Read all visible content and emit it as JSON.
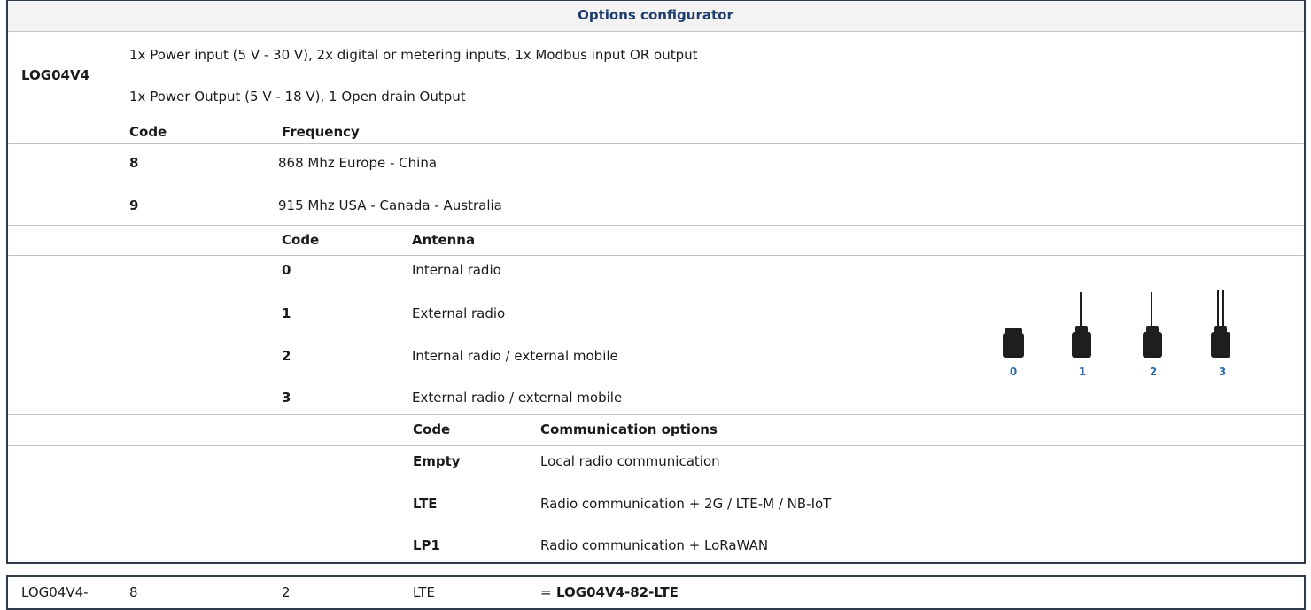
{
  "title": "Options configurator",
  "model": {
    "code": "LOG04V4",
    "lines": [
      "1x Power input (5 V - 30 V), 2x digital or metering inputs, 1x Modbus input OR output",
      "1x Power Output (5 V - 18 V), 1 Open drain Output"
    ]
  },
  "frequency": {
    "headers": [
      "Code",
      "Frequency"
    ],
    "rows": [
      [
        "8",
        "868 Mhz Europe - China"
      ],
      [
        "9",
        "915 Mhz USA - Canada - Australia"
      ]
    ]
  },
  "antenna": {
    "headers": [
      "Code",
      "Antenna"
    ],
    "rows": [
      [
        "0",
        "Internal radio"
      ],
      [
        "1",
        "External radio"
      ],
      [
        "2",
        "Internal radio / external mobile"
      ],
      [
        "3",
        "External radio / external mobile"
      ]
    ]
  },
  "antenna_image_labels": [
    "0",
    "1",
    "2",
    "3"
  ],
  "communication": {
    "headers": [
      "Code",
      "Communication options"
    ],
    "rows": [
      [
        "Empty",
        "Local radio communication"
      ],
      [
        "LTE",
        "Radio communication + 2G / LTE-M / NB-IoT"
      ],
      [
        "LP1",
        "Radio communication + LoRaWAN"
      ]
    ]
  },
  "example": {
    "parts": [
      "LOG04V4-",
      "8",
      "2",
      "LTE"
    ],
    "equals": "=",
    "result": "LOG04V4-82-LTE"
  }
}
